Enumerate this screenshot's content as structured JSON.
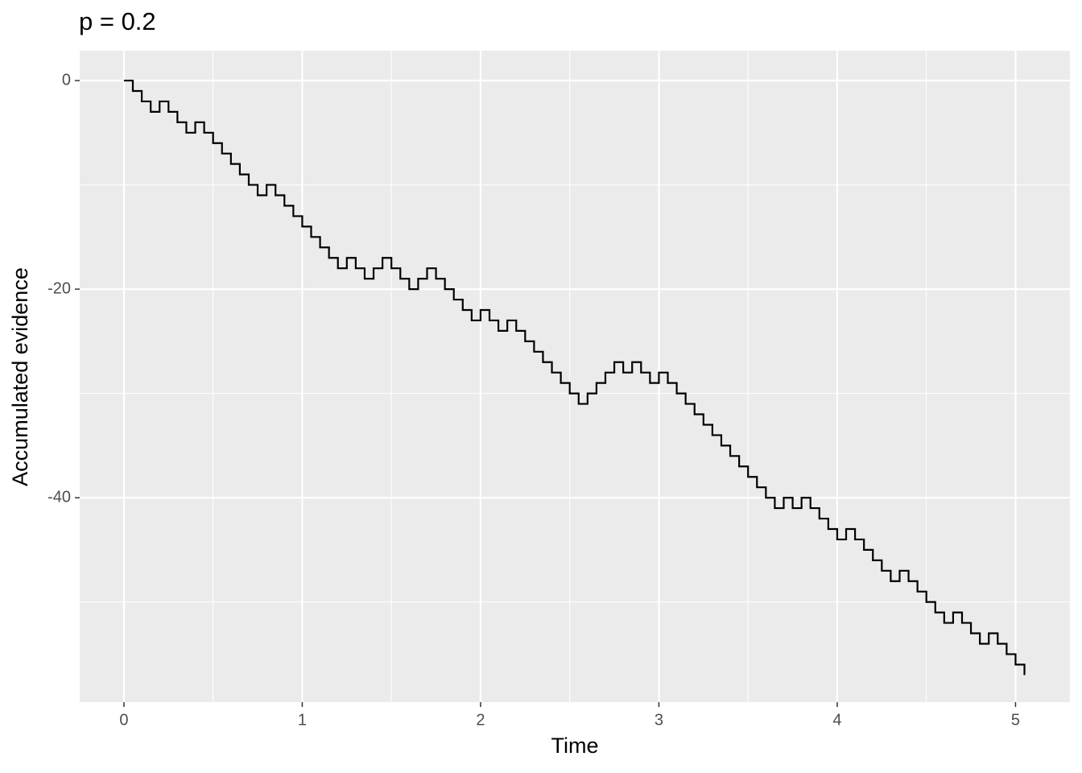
{
  "chart_data": {
    "type": "step",
    "title": "p = 0.2",
    "x_label": "Time",
    "y_label": "Accumulated evidence",
    "x": [
      0,
      0.05,
      0.1,
      0.15,
      0.2,
      0.25,
      0.3,
      0.35,
      0.4,
      0.45,
      0.5,
      0.55,
      0.6,
      0.65,
      0.7,
      0.75,
      0.8,
      0.85,
      0.9,
      0.95,
      1,
      1.05,
      1.1,
      1.15,
      1.2,
      1.25,
      1.3,
      1.35,
      1.4,
      1.45,
      1.5,
      1.55,
      1.6,
      1.65,
      1.7,
      1.75,
      1.8,
      1.85,
      1.9,
      1.95,
      2,
      2.05,
      2.1,
      2.15,
      2.2,
      2.25,
      2.3,
      2.35,
      2.4,
      2.45,
      2.5,
      2.55,
      2.6,
      2.65,
      2.7,
      2.75,
      2.8,
      2.85,
      2.9,
      2.95,
      3,
      3.05,
      3.1,
      3.15,
      3.2,
      3.25,
      3.3,
      3.35,
      3.4,
      3.45,
      3.5,
      3.55,
      3.6,
      3.65,
      3.7,
      3.75,
      3.8,
      3.85,
      3.9,
      3.95,
      4,
      4.05,
      4.1,
      4.15,
      4.2,
      4.25,
      4.3,
      4.35,
      4.4,
      4.45,
      4.5,
      4.55,
      4.6,
      4.65,
      4.7,
      4.75,
      4.8,
      4.85,
      4.9,
      4.95,
      5,
      5.05
    ],
    "series": [
      {
        "color": "#000000",
        "values": [
          0,
          -1,
          -2,
          -3,
          -2,
          -3,
          -4,
          -5,
          -4,
          -5,
          -6,
          -7,
          -8,
          -9,
          -10,
          -11,
          -10,
          -11,
          -12,
          -13,
          -14,
          -15,
          -16,
          -17,
          -18,
          -17,
          -18,
          -19,
          -18,
          -17,
          -18,
          -19,
          -20,
          -19,
          -18,
          -19,
          -20,
          -21,
          -22,
          -23,
          -22,
          -23,
          -24,
          -23,
          -24,
          -25,
          -26,
          -27,
          -28,
          -29,
          -30,
          -31,
          -30,
          -29,
          -28,
          -27,
          -28,
          -27,
          -28,
          -29,
          -28,
          -29,
          -30,
          -31,
          -32,
          -33,
          -34,
          -35,
          -36,
          -37,
          -38,
          -39,
          -40,
          -41,
          -40,
          -41,
          -40,
          -41,
          -42,
          -43,
          -44,
          -43,
          -44,
          -45,
          -46,
          -47,
          -48,
          -47,
          -48,
          -49,
          -50,
          -51,
          -52,
          -51,
          -52,
          -53,
          -54,
          -53,
          -54,
          -55,
          -56,
          -57
        ]
      }
    ],
    "xlim": [
      -0.248,
      5.305
    ],
    "ylim": [
      -59.6,
      2.86
    ],
    "xticks": [
      0,
      1,
      2,
      3,
      4,
      5
    ],
    "yticks": [
      0,
      -20,
      -40
    ],
    "minor_xticks": [
      0.5,
      1.5,
      2.5,
      3.5,
      4.5
    ],
    "minor_yticks": [
      -10,
      -30,
      -50
    ],
    "grid": true,
    "background": "#ebebeb"
  }
}
